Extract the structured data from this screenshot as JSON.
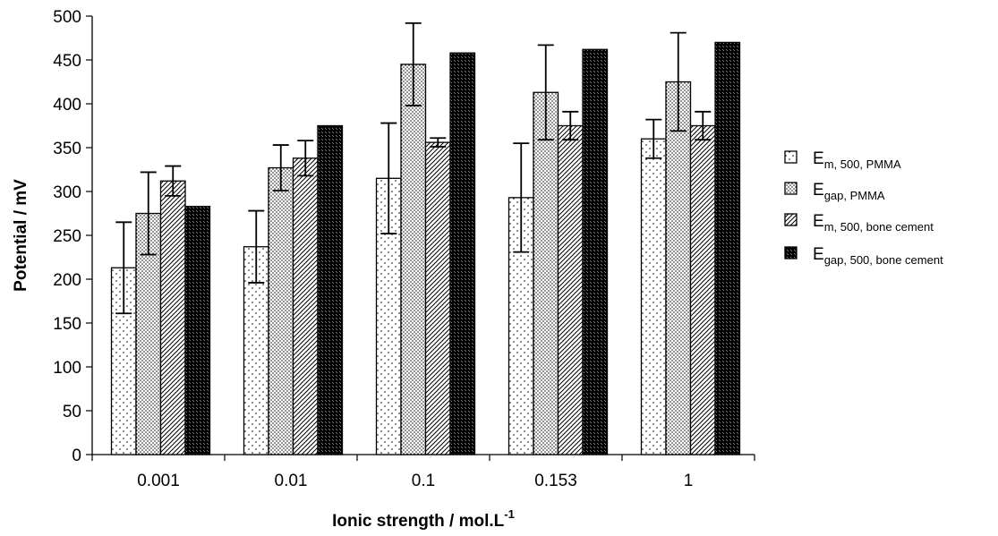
{
  "chart_data": {
    "type": "bar",
    "categories": [
      "0.001",
      "0.01",
      "0.1",
      "0.153",
      "1"
    ],
    "series": [
      {
        "name": "E",
        "name_sub": "m, 500, PMMA",
        "pattern": "sparse-dots",
        "values": [
          213,
          237,
          315,
          293,
          360
        ],
        "errors": [
          52,
          41,
          63,
          62,
          22
        ]
      },
      {
        "name": "E",
        "name_sub": "gap, PMMA",
        "pattern": "dense-dots",
        "values": [
          275,
          327,
          445,
          413,
          425
        ],
        "errors": [
          47,
          26,
          47,
          54,
          56
        ]
      },
      {
        "name": "E",
        "name_sub": "m, 500, bone cement",
        "pattern": "light-diagonal",
        "values": [
          312,
          338,
          356,
          375,
          375
        ],
        "errors": [
          17,
          20,
          5,
          16,
          16
        ]
      },
      {
        "name": "E",
        "name_sub": "gap, 500, bone cement",
        "pattern": "dense-diagonal",
        "values": [
          283,
          375,
          458,
          462,
          470
        ],
        "errors": [
          0,
          0,
          0,
          0,
          0
        ]
      }
    ],
    "ylabel": "Potential / mV",
    "xlabel": "Ionic strength / mol.L",
    "xlabel_sup": "-1",
    "ylim": [
      0,
      500
    ],
    "yticks": [
      0,
      50,
      100,
      150,
      200,
      250,
      300,
      350,
      400,
      450,
      500
    ],
    "grid": false,
    "legend_position": "right"
  }
}
